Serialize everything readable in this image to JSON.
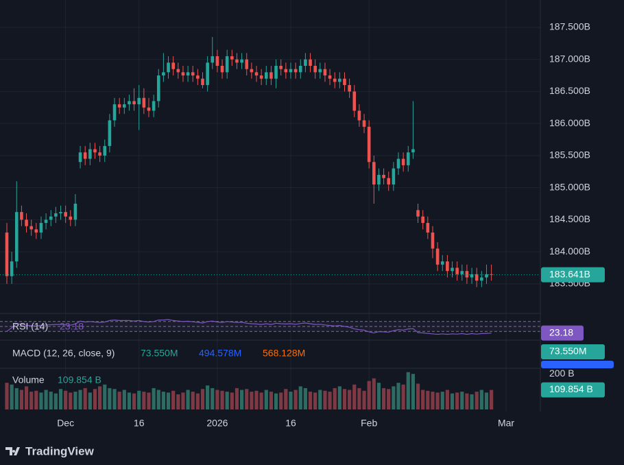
{
  "chart_data": {
    "type": "candlestick",
    "open": [
      184.3,
      183.62,
      183.85,
      184.62,
      184.5,
      184.4,
      184.35,
      184.3,
      184.45,
      184.5,
      184.55,
      184.6,
      184.62,
      184.55,
      184.5,
      185.4,
      185.55,
      185.45,
      185.6,
      185.55,
      185.5,
      185.65,
      186.05,
      186.3,
      186.25,
      186.3,
      186.35,
      186.3,
      186.4,
      186.25,
      186.2,
      186.35,
      186.75,
      186.8,
      186.95,
      186.85,
      186.8,
      186.75,
      186.8,
      186.75,
      186.7,
      186.6,
      186.95,
      187.05,
      186.9,
      186.8,
      187.05,
      187.0,
      186.95,
      187.0,
      186.85,
      186.8,
      186.75,
      186.7,
      186.8,
      186.7,
      186.9,
      186.85,
      186.8,
      186.85,
      186.8,
      186.9,
      187.0,
      186.9,
      186.8,
      186.85,
      186.75,
      186.7,
      186.65,
      186.7,
      186.6,
      186.5,
      186.2,
      186.05,
      185.95,
      185.4,
      185.05,
      185.2,
      185.15,
      185.05,
      185.3,
      185.45,
      185.35,
      185.55,
      184.65,
      184.55,
      184.45,
      184.3,
      184.05,
      183.8,
      183.85,
      183.7,
      183.75,
      183.65,
      183.7,
      183.6,
      183.65,
      183.55,
      183.6,
      183.65
    ],
    "high": [
      184.45,
      184.0,
      185.1,
      184.72,
      184.6,
      184.5,
      184.45,
      184.55,
      184.6,
      184.65,
      184.7,
      184.72,
      184.72,
      184.65,
      184.9,
      185.65,
      185.65,
      185.7,
      185.7,
      185.65,
      185.75,
      186.15,
      186.4,
      186.4,
      186.4,
      186.45,
      186.55,
      186.6,
      186.55,
      186.4,
      186.45,
      186.85,
      187.1,
      187.05,
      187.05,
      186.95,
      186.9,
      186.9,
      186.9,
      186.85,
      186.8,
      187.05,
      187.35,
      187.15,
      187.0,
      187.15,
      187.15,
      187.1,
      187.1,
      187.1,
      186.95,
      186.9,
      186.85,
      186.9,
      186.9,
      187.0,
      187.0,
      186.95,
      186.95,
      186.95,
      187.0,
      187.1,
      187.1,
      187.0,
      186.95,
      186.95,
      186.85,
      186.8,
      186.8,
      186.8,
      186.7,
      186.6,
      186.3,
      186.15,
      186.05,
      185.5,
      185.3,
      185.3,
      185.25,
      185.4,
      185.55,
      185.55,
      185.65,
      186.35,
      184.75,
      184.65,
      184.55,
      184.4,
      184.15,
      183.95,
      183.95,
      183.85,
      183.85,
      183.8,
      183.8,
      183.75,
      183.75,
      183.7,
      183.8,
      183.8
    ],
    "low": [
      183.5,
      183.5,
      183.75,
      184.4,
      184.3,
      184.25,
      184.2,
      184.2,
      184.35,
      184.4,
      184.45,
      184.5,
      184.45,
      184.4,
      184.4,
      185.3,
      185.35,
      185.35,
      185.45,
      185.4,
      185.4,
      185.55,
      185.95,
      186.15,
      186.15,
      186.2,
      186.2,
      185.9,
      186.15,
      186.1,
      186.1,
      186.25,
      186.65,
      186.7,
      186.75,
      186.7,
      186.65,
      186.65,
      186.65,
      186.6,
      186.55,
      186.5,
      186.85,
      186.8,
      186.7,
      186.7,
      186.9,
      186.85,
      186.85,
      186.75,
      186.7,
      186.65,
      186.6,
      186.6,
      186.6,
      186.55,
      186.75,
      186.7,
      186.7,
      186.7,
      186.7,
      186.8,
      186.8,
      186.7,
      186.7,
      186.65,
      186.6,
      186.55,
      186.55,
      186.5,
      186.4,
      186.1,
      185.95,
      185.85,
      185.3,
      184.75,
      184.95,
      185.05,
      184.95,
      184.95,
      185.2,
      185.25,
      185.25,
      185.45,
      184.45,
      184.35,
      184.2,
      183.9,
      183.7,
      183.7,
      183.6,
      183.6,
      183.55,
      183.55,
      183.5,
      183.5,
      183.45,
      183.45,
      183.5,
      183.55
    ],
    "close": [
      183.62,
      183.85,
      184.62,
      184.5,
      184.4,
      184.35,
      184.3,
      184.45,
      184.5,
      184.55,
      184.6,
      184.62,
      184.55,
      184.5,
      184.75,
      185.55,
      185.45,
      185.6,
      185.55,
      185.5,
      185.65,
      186.05,
      186.3,
      186.25,
      186.3,
      186.35,
      186.3,
      186.4,
      186.25,
      186.2,
      186.35,
      186.75,
      186.8,
      186.95,
      186.85,
      186.8,
      186.75,
      186.8,
      186.75,
      186.7,
      186.6,
      186.95,
      187.05,
      186.9,
      186.8,
      187.05,
      187.0,
      186.95,
      187.0,
      186.85,
      186.8,
      186.75,
      186.7,
      186.8,
      186.7,
      186.9,
      186.85,
      186.8,
      186.85,
      186.8,
      186.9,
      187.0,
      186.9,
      186.8,
      186.85,
      186.75,
      186.7,
      186.65,
      186.7,
      186.6,
      186.5,
      186.2,
      186.05,
      185.95,
      185.4,
      185.05,
      185.2,
      185.15,
      185.05,
      185.3,
      185.45,
      185.35,
      185.55,
      185.6,
      184.55,
      184.45,
      184.3,
      184.05,
      183.8,
      183.85,
      183.7,
      183.75,
      183.65,
      183.7,
      183.6,
      183.65,
      183.55,
      183.6,
      183.65,
      183.641
    ],
    "up_color": "#26a69a",
    "down_color": "#ef5350",
    "xlim": [
      -1.4,
      109
    ],
    "xticks": [
      {
        "value": 12,
        "label": "Dec"
      },
      {
        "value": 27,
        "label": "16"
      },
      {
        "value": 43,
        "label": "2026"
      },
      {
        "value": 58,
        "label": "16"
      },
      {
        "value": 74,
        "label": "Feb"
      },
      {
        "value": 102,
        "label": "Mar"
      }
    ],
    "ylim": [
      183.06,
      187.82
    ],
    "yticks": [
      {
        "value": 187.5,
        "label": "187.500B"
      },
      {
        "value": 187.0,
        "label": "187.000B"
      },
      {
        "value": 186.5,
        "label": "186.500B"
      },
      {
        "value": 186.0,
        "label": "186.000B"
      },
      {
        "value": 185.5,
        "label": "185.500B"
      },
      {
        "value": 185.0,
        "label": "185.000B"
      },
      {
        "value": 184.5,
        "label": "184.500B"
      },
      {
        "value": 184.0,
        "label": "184.000B"
      },
      {
        "value": 183.5,
        "label": "183.500B"
      }
    ],
    "last_price": {
      "value": 183.641,
      "label": "183.641B"
    },
    "grid": true,
    "rsi": {
      "title": "RSI (14)",
      "color": "#7e57c2",
      "levels": [
        70,
        50,
        30
      ],
      "ylim": [
        0,
        100
      ],
      "values": [
        30,
        45,
        62,
        58,
        55,
        53,
        52,
        55,
        56,
        57,
        58,
        58,
        56,
        55,
        60,
        72,
        68,
        70,
        68,
        66,
        68,
        74,
        76,
        74,
        74,
        74,
        72,
        74,
        70,
        68,
        70,
        76,
        76,
        78,
        74,
        72,
        70,
        71,
        69,
        67,
        64,
        70,
        72,
        68,
        66,
        70,
        68,
        66,
        67,
        63,
        61,
        60,
        58,
        61,
        58,
        63,
        61,
        60,
        61,
        59,
        62,
        64,
        61,
        58,
        59,
        56,
        54,
        52,
        54,
        50,
        47,
        40,
        37,
        35,
        28,
        24,
        29,
        28,
        27,
        33,
        37,
        35,
        40,
        41,
        25,
        24,
        22,
        20,
        18,
        20,
        18,
        20,
        19,
        21,
        18,
        21,
        19,
        21,
        22,
        23.18
      ]
    },
    "macd": {
      "title": "MACD (12, 26, close, 9)",
      "readouts": [
        "73.550M",
        "494.578M",
        "568.128M"
      ],
      "readout_colors": [
        "#26a69a",
        "#2962ff",
        "#ff6d00"
      ]
    },
    "volume": {
      "title": "Volume",
      "ylim": [
        0,
        220
      ],
      "yticks": [
        {
          "value": 200,
          "label": "200 B"
        }
      ],
      "values": [
        150,
        140,
        120,
        110,
        130,
        100,
        105,
        95,
        110,
        100,
        90,
        115,
        105,
        95,
        100,
        110,
        120,
        95,
        115,
        130,
        140,
        120,
        115,
        100,
        110,
        95,
        90,
        105,
        100,
        95,
        120,
        110,
        100,
        95,
        105,
        85,
        95,
        110,
        100,
        90,
        115,
        135,
        120,
        110,
        105,
        100,
        95,
        120,
        110,
        115,
        100,
        105,
        95,
        110,
        100,
        90,
        95,
        115,
        100,
        110,
        130,
        120,
        100,
        95,
        110,
        105,
        100,
        120,
        130,
        115,
        110,
        140,
        120,
        105,
        160,
        175,
        150,
        120,
        115,
        130,
        150,
        140,
        210,
        200,
        145,
        110,
        105,
        100,
        95,
        100,
        110,
        90,
        95,
        100,
        90,
        85,
        100,
        110,
        95,
        109.854
      ],
      "last": {
        "value": 109.854,
        "label": "109.854 B"
      }
    },
    "branding": "TradingView"
  }
}
